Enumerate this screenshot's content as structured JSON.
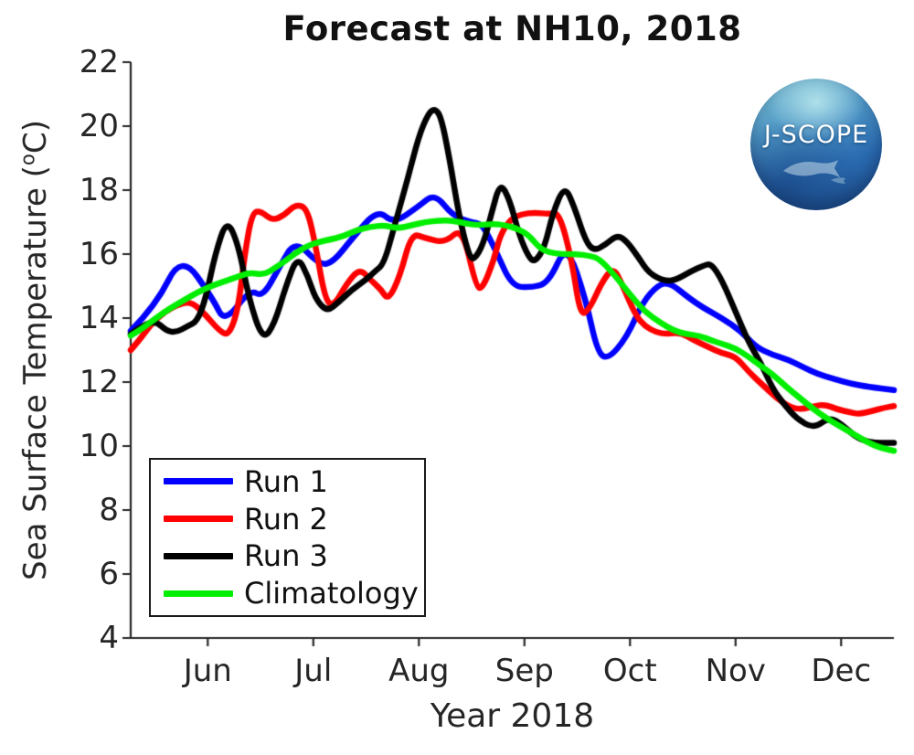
{
  "logo": {
    "text": "J-SCOPE"
  },
  "chart_data": {
    "type": "line",
    "title": "Forecast at NH10, 2018",
    "xlabel": "Year 2018",
    "ylabel": "Sea Surface Temperature (°C)",
    "ylabel_parts": {
      "prefix": "Sea Surface Temperature (",
      "sup": "o",
      "suffix": "C)"
    },
    "x_unit": "decimal month of 2018 (6 = Jun 1, 7 = Jul 1, ... 12 = Dec 1)",
    "xlim": [
      5.27,
      12.5
    ],
    "ylim": [
      4,
      22
    ],
    "grid": false,
    "axis_color": "#262626",
    "legend_position": "lower-left",
    "xticks": [
      {
        "value": 6,
        "label": "Jun"
      },
      {
        "value": 7,
        "label": "Jul"
      },
      {
        "value": 8,
        "label": "Aug"
      },
      {
        "value": 9,
        "label": "Sep"
      },
      {
        "value": 10,
        "label": "Oct"
      },
      {
        "value": 11,
        "label": "Nov"
      },
      {
        "value": 12,
        "label": "Dec"
      }
    ],
    "yticks": [
      4,
      6,
      8,
      10,
      12,
      14,
      16,
      18,
      20,
      22
    ],
    "series": [
      {
        "name": "Run 1",
        "color": "#0000ff",
        "x": [
          5.27,
          5.51,
          5.75,
          6.05,
          6.16,
          6.4,
          6.52,
          6.68,
          6.83,
          7.06,
          7.19,
          7.37,
          7.61,
          7.76,
          8.0,
          8.15,
          8.32,
          8.49,
          8.6,
          8.73,
          8.88,
          9.06,
          9.23,
          9.4,
          9.58,
          9.69,
          9.79,
          9.97,
          10.12,
          10.27,
          10.38,
          10.55,
          10.68,
          10.87,
          11.05,
          11.19,
          11.35,
          11.5,
          11.65,
          11.78,
          11.93,
          12.09,
          12.26,
          12.5
        ],
        "y": [
          13.6,
          14.4,
          16.0,
          14.6,
          13.85,
          14.9,
          14.65,
          15.6,
          16.45,
          15.65,
          15.75,
          16.5,
          17.4,
          16.95,
          17.5,
          17.9,
          17.2,
          17.0,
          16.95,
          16.1,
          15.0,
          14.95,
          15.1,
          16.35,
          14.6,
          12.95,
          12.7,
          13.4,
          14.5,
          15.05,
          15.1,
          14.65,
          14.35,
          14.0,
          13.6,
          13.1,
          12.85,
          12.7,
          12.45,
          12.25,
          12.1,
          11.95,
          11.85,
          11.75
        ]
      },
      {
        "name": "Run 2",
        "color": "#ff0000",
        "x": [
          5.27,
          5.35,
          5.46,
          5.59,
          5.74,
          5.85,
          5.98,
          6.11,
          6.2,
          6.29,
          6.35,
          6.42,
          6.5,
          6.61,
          6.72,
          6.83,
          6.94,
          7.02,
          7.11,
          7.19,
          7.32,
          7.44,
          7.54,
          7.64,
          7.71,
          7.82,
          7.93,
          8.06,
          8.25,
          8.41,
          8.54,
          8.6,
          8.71,
          8.77,
          8.87,
          8.97,
          9.1,
          9.23,
          9.33,
          9.45,
          9.53,
          9.62,
          9.73,
          9.84,
          9.92,
          10.05,
          10.14,
          10.25,
          10.35,
          10.48,
          10.61,
          10.74,
          10.87,
          11.0,
          11.13,
          11.26,
          11.39,
          11.52,
          11.63,
          11.74,
          11.85,
          11.96,
          12.09,
          12.17,
          12.3,
          12.41,
          12.5
        ],
        "y": [
          13.0,
          13.3,
          13.8,
          14.2,
          14.45,
          14.5,
          14.1,
          13.6,
          13.45,
          14.3,
          16.0,
          17.3,
          17.35,
          17.05,
          17.2,
          17.55,
          17.45,
          16.3,
          14.6,
          14.35,
          15.1,
          15.55,
          15.2,
          14.9,
          14.55,
          15.3,
          16.65,
          16.5,
          16.35,
          16.85,
          15.0,
          14.9,
          15.8,
          16.6,
          17.1,
          17.25,
          17.3,
          17.25,
          17.3,
          15.8,
          14.05,
          14.3,
          15.1,
          15.6,
          15.1,
          14.1,
          13.75,
          13.55,
          13.5,
          13.55,
          13.3,
          13.1,
          12.9,
          12.8,
          12.3,
          11.9,
          11.5,
          11.2,
          11.15,
          11.25,
          11.3,
          11.15,
          11.05,
          11.0,
          11.1,
          11.2,
          11.25
        ]
      },
      {
        "name": "Run 3",
        "color": "#000000",
        "x": [
          5.27,
          5.4,
          5.51,
          5.61,
          5.7,
          5.81,
          5.9,
          5.98,
          6.07,
          6.18,
          6.29,
          6.39,
          6.52,
          6.63,
          6.74,
          6.85,
          6.95,
          7.02,
          7.13,
          7.24,
          7.37,
          7.5,
          7.58,
          7.67,
          7.77,
          7.89,
          8.0,
          8.09,
          8.15,
          8.21,
          8.29,
          8.38,
          8.47,
          8.52,
          8.61,
          8.69,
          8.77,
          8.86,
          8.95,
          9.04,
          9.1,
          9.19,
          9.27,
          9.38,
          9.47,
          9.58,
          9.66,
          9.77,
          9.88,
          9.97,
          10.08,
          10.18,
          10.33,
          10.44,
          10.57,
          10.7,
          10.77,
          10.87,
          11.0,
          11.13,
          11.24,
          11.35,
          11.46,
          11.58,
          11.74,
          11.89,
          12.0,
          12.13,
          12.26,
          12.39,
          12.5
        ],
        "y": [
          13.5,
          13.8,
          13.9,
          13.6,
          13.55,
          13.75,
          13.9,
          14.6,
          16.0,
          17.1,
          16.3,
          14.6,
          13.3,
          13.8,
          15.0,
          15.95,
          15.3,
          14.6,
          14.2,
          14.5,
          14.9,
          15.2,
          15.45,
          15.7,
          16.9,
          18.3,
          19.7,
          20.4,
          20.55,
          20.3,
          19.0,
          17.2,
          16.0,
          15.8,
          16.3,
          17.3,
          18.25,
          17.7,
          16.6,
          15.9,
          15.75,
          16.2,
          17.3,
          18.15,
          17.5,
          16.4,
          16.1,
          16.3,
          16.6,
          16.4,
          15.9,
          15.4,
          15.15,
          15.2,
          15.45,
          15.65,
          15.7,
          15.2,
          14.2,
          13.2,
          12.6,
          11.8,
          11.3,
          10.85,
          10.55,
          10.9,
          10.7,
          10.3,
          10.12,
          10.1,
          10.1
        ]
      },
      {
        "name": "Climatology",
        "color": "#00ee00",
        "x": [
          5.27,
          5.37,
          5.51,
          5.64,
          5.77,
          5.9,
          6.03,
          6.16,
          6.29,
          6.4,
          6.53,
          6.63,
          6.74,
          6.83,
          6.94,
          7.05,
          7.15,
          7.28,
          7.41,
          7.54,
          7.67,
          7.8,
          7.93,
          8.06,
          8.19,
          8.32,
          8.45,
          8.58,
          8.71,
          8.82,
          8.93,
          9.04,
          9.14,
          9.23,
          9.36,
          9.49,
          9.62,
          9.71,
          9.84,
          10.01,
          10.14,
          10.29,
          10.42,
          10.53,
          10.66,
          10.77,
          10.87,
          11.0,
          11.12,
          11.24,
          11.35,
          11.48,
          11.61,
          11.74,
          11.87,
          12.0,
          12.13,
          12.26,
          12.37,
          12.5
        ],
        "y": [
          13.45,
          13.65,
          14.0,
          14.3,
          14.55,
          14.8,
          15.0,
          15.15,
          15.3,
          15.42,
          15.35,
          15.55,
          15.8,
          16.03,
          16.25,
          16.38,
          16.45,
          16.55,
          16.75,
          16.85,
          16.9,
          16.8,
          16.9,
          17.0,
          17.05,
          17.05,
          16.95,
          16.9,
          16.95,
          16.9,
          16.8,
          16.6,
          16.2,
          16.05,
          16.0,
          16.0,
          15.95,
          15.85,
          15.4,
          14.7,
          14.2,
          13.85,
          13.6,
          13.5,
          13.45,
          13.3,
          13.2,
          13.05,
          12.8,
          12.5,
          12.25,
          11.85,
          11.5,
          11.15,
          10.85,
          10.6,
          10.35,
          10.1,
          9.95,
          9.85
        ]
      }
    ]
  }
}
